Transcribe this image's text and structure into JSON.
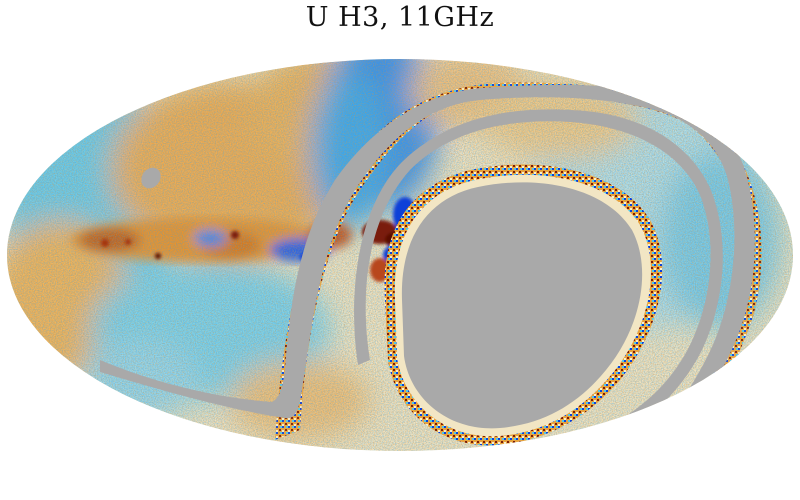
{
  "title": "U H3, 11GHz",
  "colors": {
    "mask": "#a9a9a9",
    "negative": "#0b3fd8",
    "light_negative": "#4fc8e8",
    "zero": "#f6efd0",
    "positive": "#e7a33e",
    "strong_positive": "#7a1c08",
    "background": "#ffffff"
  }
}
